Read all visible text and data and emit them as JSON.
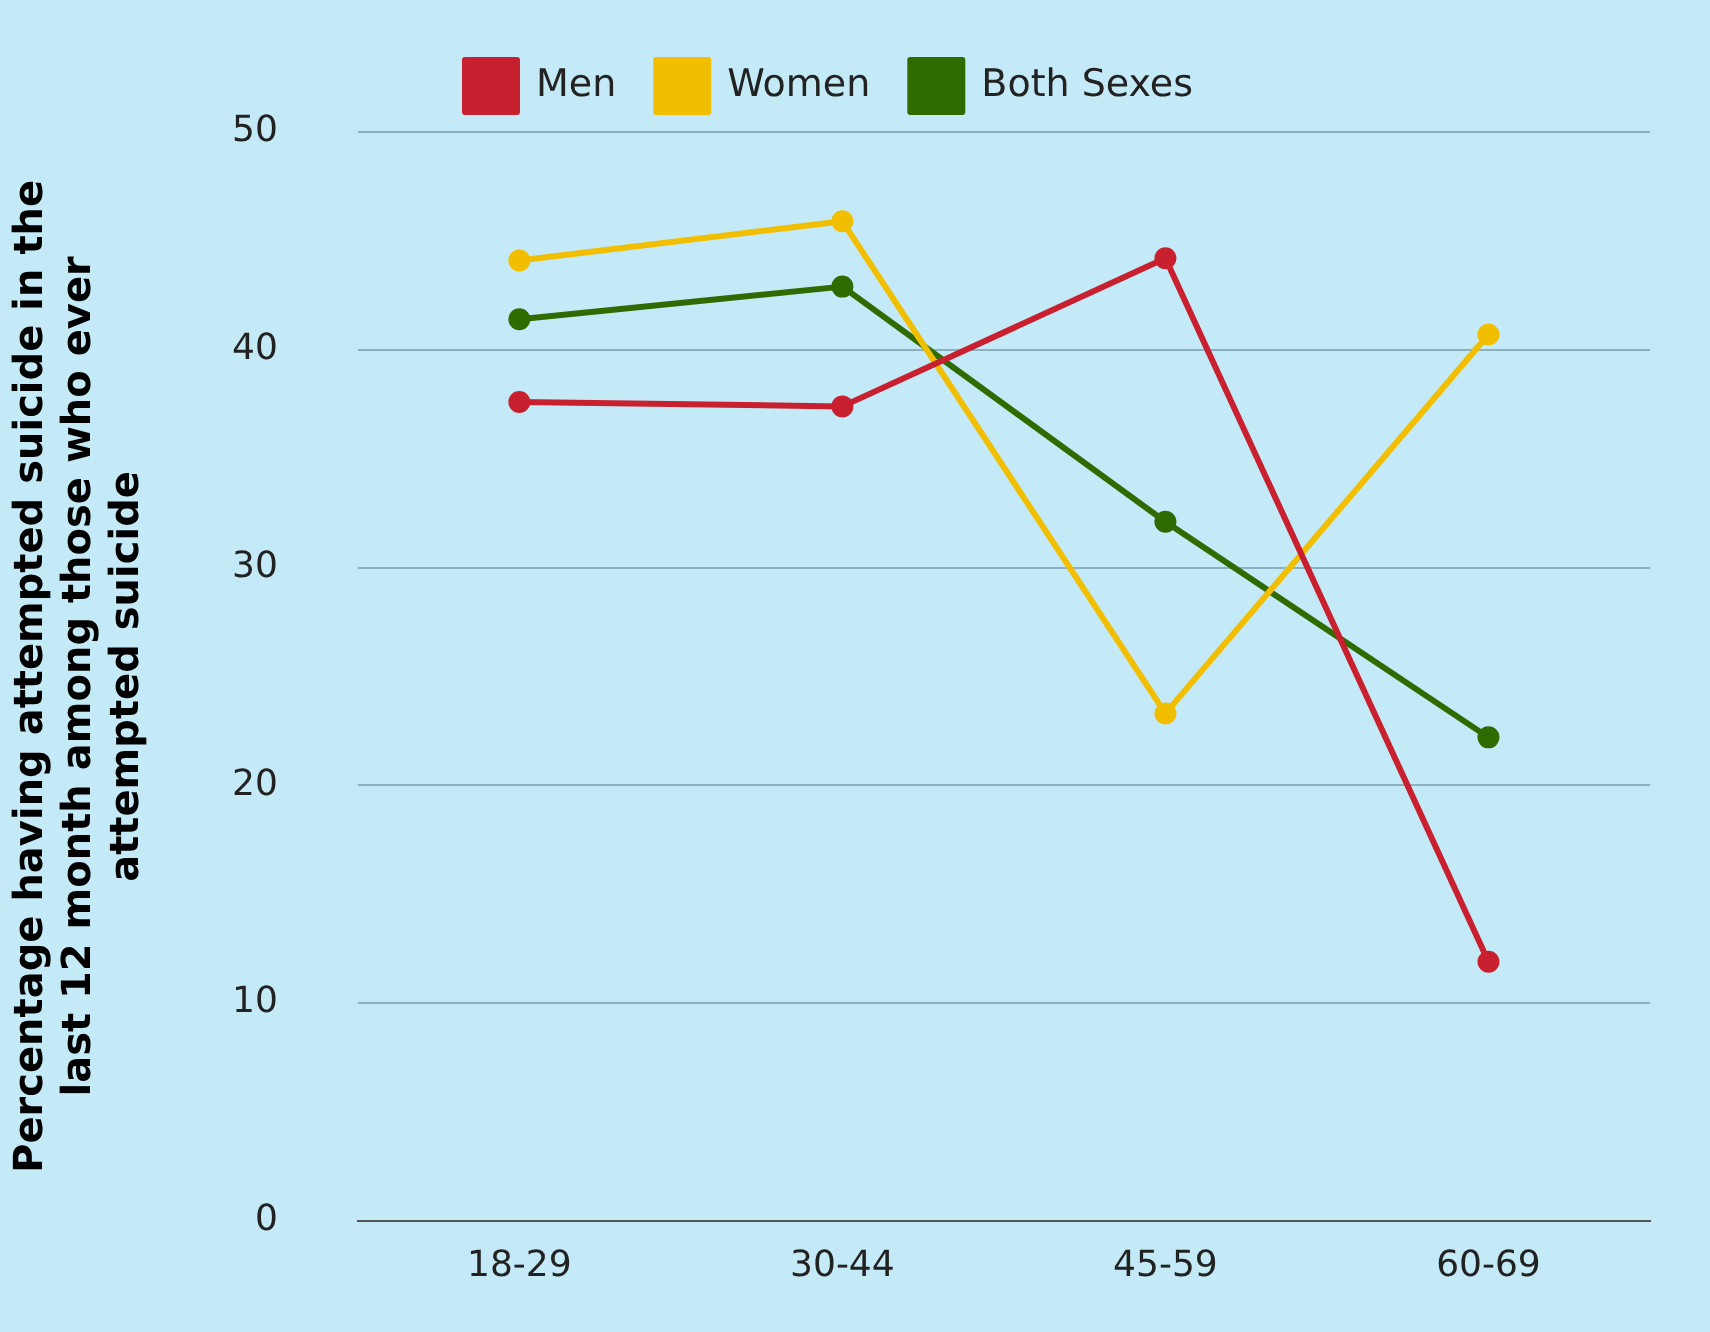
{
  "chart_data": {
    "type": "line",
    "ylabel": "Percentage having attempted suicide in the last 12 month among those who ever attempted suicide",
    "categories": [
      "18-29",
      "30-44",
      "45-59",
      "60-69"
    ],
    "series": [
      {
        "name": "Men",
        "color": "#c8202f",
        "values": [
          37.6,
          37.4,
          44.2,
          11.9
        ]
      },
      {
        "name": "Women",
        "color": "#f2be00",
        "values": [
          44.1,
          45.9,
          23.3,
          40.7
        ]
      },
      {
        "name": "Both Sexes",
        "color": "#2e6b00",
        "values": [
          41.4,
          42.9,
          32.1,
          22.2
        ]
      }
    ],
    "ylim": [
      0,
      50
    ],
    "yticks": [
      0,
      10,
      20,
      30,
      40,
      50
    ],
    "grid": "y",
    "legend": "top",
    "marker": "circle",
    "line_style": "solid"
  }
}
